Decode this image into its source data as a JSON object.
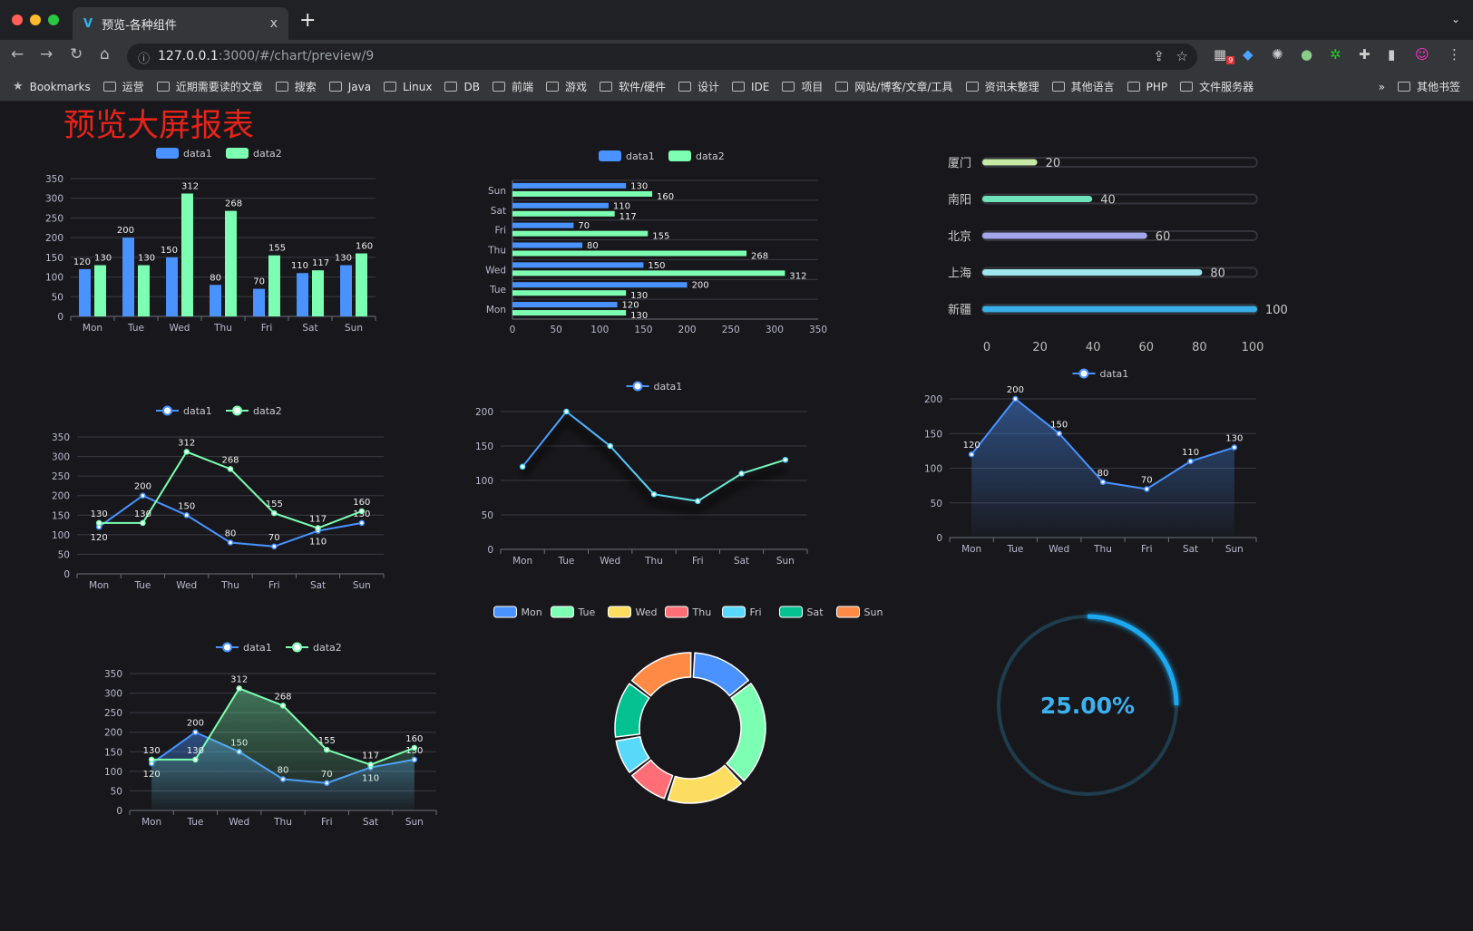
{
  "browser": {
    "tab_title": "预览-各种组件",
    "tab_close": "x",
    "new_tab": "+",
    "url_host": "127.0.0.1",
    "url_rest": ":3000/#/chart/preview/9",
    "extension_badge": "9",
    "bookmarks": [
      "Bookmarks",
      "运营",
      "近期需要读的文章",
      "搜索",
      "Java",
      "Linux",
      "DB",
      "前端",
      "游戏",
      "软件/硬件",
      "设计",
      "IDE",
      "项目",
      "网站/博客/文章/工具",
      "资讯未整理",
      "其他语言",
      "PHP",
      "文件服务器"
    ],
    "bookmarks_more": "»",
    "other_bookmarks": "其他书签"
  },
  "page": {
    "title": "预览大屏报表",
    "title_color": "#e8231a"
  },
  "colors": {
    "data1": "#4992ff",
    "data2": "#7cffb2",
    "grid": "#3a3a44",
    "axis_text": "#b9b8ce"
  },
  "chart_data": [
    {
      "type": "bar",
      "legend": [
        "data1",
        "data2"
      ],
      "categories": [
        "Mon",
        "Tue",
        "Wed",
        "Thu",
        "Fri",
        "Sat",
        "Sun"
      ],
      "series": [
        {
          "name": "data1",
          "values": [
            120,
            200,
            150,
            80,
            70,
            110,
            130
          ]
        },
        {
          "name": "data2",
          "values": [
            130,
            130,
            312,
            268,
            155,
            117,
            160
          ]
        }
      ],
      "ylim": [
        0,
        350
      ],
      "yticks": [
        0,
        50,
        100,
        150,
        200,
        250,
        300,
        350
      ],
      "grid": true,
      "legend_position": "top"
    },
    {
      "type": "bar",
      "orientation": "horizontal",
      "legend": [
        "data1",
        "data2"
      ],
      "categories": [
        "Mon",
        "Tue",
        "Wed",
        "Thu",
        "Fri",
        "Sat",
        "Sun"
      ],
      "series": [
        {
          "name": "data1",
          "values": [
            120,
            200,
            150,
            80,
            70,
            110,
            130
          ]
        },
        {
          "name": "data2",
          "values": [
            130,
            130,
            312,
            268,
            155,
            117,
            160
          ]
        }
      ],
      "xlim": [
        0,
        350
      ],
      "xticks": [
        0,
        50,
        100,
        150,
        200,
        250,
        300,
        350
      ],
      "grid": true,
      "legend_position": "top"
    },
    {
      "type": "bar",
      "variant": "progress",
      "categories": [
        "厦门",
        "南阳",
        "北京",
        "上海",
        "新疆"
      ],
      "values": [
        20,
        40,
        60,
        80,
        100
      ],
      "colors": [
        "#c6eaa6",
        "#6ee2b8",
        "#a3a6eb",
        "#9ee5ee",
        "#3aaee6"
      ],
      "xlim": [
        0,
        100
      ],
      "xticks": [
        0,
        20,
        40,
        60,
        80,
        100
      ]
    },
    {
      "type": "line",
      "legend": [
        "data1",
        "data2"
      ],
      "categories": [
        "Mon",
        "Tue",
        "Wed",
        "Thu",
        "Fri",
        "Sat",
        "Sun"
      ],
      "series": [
        {
          "name": "data1",
          "values": [
            120,
            200,
            150,
            80,
            70,
            110,
            130
          ]
        },
        {
          "name": "data2",
          "values": [
            130,
            130,
            312,
            268,
            155,
            117,
            160
          ]
        }
      ],
      "ylim": [
        0,
        350
      ],
      "yticks": [
        0,
        50,
        100,
        150,
        200,
        250,
        300,
        350
      ],
      "grid": true,
      "legend_position": "top"
    },
    {
      "type": "line",
      "legend": [
        "data1"
      ],
      "categories": [
        "Mon",
        "Tue",
        "Wed",
        "Thu",
        "Fri",
        "Sat",
        "Sun"
      ],
      "series": [
        {
          "name": "data1",
          "values": [
            120,
            200,
            150,
            80,
            70,
            110,
            130
          ]
        }
      ],
      "ylim": [
        0,
        200
      ],
      "yticks": [
        0,
        50,
        100,
        150,
        200
      ],
      "grid": true,
      "legend_position": "top",
      "data_labels": false
    },
    {
      "type": "area",
      "legend": [
        "data1"
      ],
      "categories": [
        "Mon",
        "Tue",
        "Wed",
        "Thu",
        "Fri",
        "Sat",
        "Sun"
      ],
      "series": [
        {
          "name": "data1",
          "values": [
            120,
            200,
            150,
            80,
            70,
            110,
            130
          ]
        }
      ],
      "ylim": [
        0,
        200
      ],
      "yticks": [
        0,
        50,
        100,
        150,
        200
      ],
      "grid": true,
      "legend_position": "top"
    },
    {
      "type": "area",
      "legend": [
        "data1",
        "data2"
      ],
      "categories": [
        "Mon",
        "Tue",
        "Wed",
        "Thu",
        "Fri",
        "Sat",
        "Sun"
      ],
      "series": [
        {
          "name": "data1",
          "values": [
            120,
            200,
            150,
            80,
            70,
            110,
            130
          ]
        },
        {
          "name": "data2",
          "values": [
            130,
            130,
            312,
            268,
            155,
            117,
            160
          ]
        }
      ],
      "ylim": [
        0,
        350
      ],
      "yticks": [
        0,
        50,
        100,
        150,
        200,
        250,
        300,
        350
      ],
      "grid": true,
      "legend_position": "top"
    },
    {
      "type": "pie",
      "variant": "donut",
      "categories": [
        "Mon",
        "Tue",
        "Wed",
        "Thu",
        "Fri",
        "Sat",
        "Sun"
      ],
      "values": [
        120,
        200,
        150,
        80,
        70,
        110,
        130
      ],
      "colors": [
        "#4992ff",
        "#7cffb2",
        "#fddd60",
        "#ff6e76",
        "#58d9f9",
        "#05c091",
        "#ff8a45"
      ],
      "legend_position": "top"
    },
    {
      "type": "gauge",
      "value": 0.25,
      "label": "25.00%",
      "color": "#1aa9f0"
    }
  ]
}
